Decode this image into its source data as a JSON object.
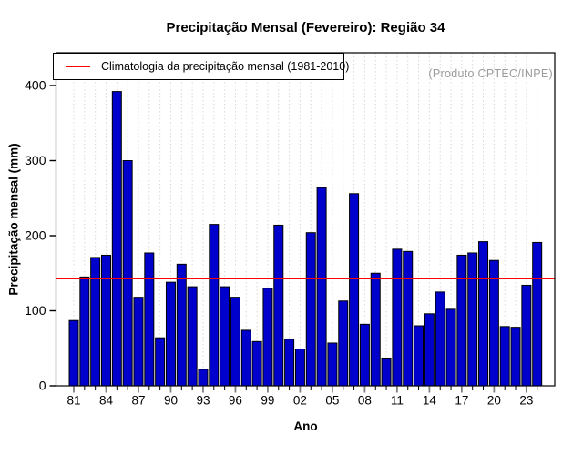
{
  "chart_data": {
    "type": "bar",
    "title": "Precipitação Mensal (Fevereiro): Região 34",
    "xlabel": "Ano",
    "ylabel": "Precipitação mensal (mm)",
    "annotation": "(Produto:CPTEC/INPE)",
    "legend": {
      "label": "Climatologia da precipitação mensal (1981-2010)",
      "position": "top-left"
    },
    "climatology_value": 143,
    "years": [
      1981,
      1982,
      1983,
      1984,
      1985,
      1986,
      1987,
      1988,
      1989,
      1990,
      1991,
      1992,
      1993,
      1994,
      1995,
      1996,
      1997,
      1998,
      1999,
      2000,
      2001,
      2002,
      2003,
      2004,
      2005,
      2006,
      2007,
      2008,
      2009,
      2010,
      2011,
      2012,
      2013,
      2014,
      2015,
      2016,
      2017,
      2018,
      2019,
      2020,
      2021,
      2022,
      2023,
      2024
    ],
    "values": [
      87,
      145,
      171,
      174,
      392,
      300,
      118,
      177,
      64,
      138,
      162,
      132,
      22,
      215,
      132,
      118,
      74,
      59,
      130,
      214,
      62,
      49,
      204,
      264,
      57,
      113,
      256,
      82,
      150,
      37,
      182,
      179,
      80,
      96,
      125,
      102,
      174,
      177,
      192,
      167,
      79,
      78,
      134,
      191
    ],
    "x_tick_years": [
      1981,
      1984,
      1987,
      1990,
      1993,
      1996,
      1999,
      2002,
      2005,
      2008,
      2011,
      2014,
      2017,
      2020,
      2023
    ],
    "x_tick_labels": [
      "81",
      "84",
      "87",
      "90",
      "93",
      "96",
      "99",
      "02",
      "05",
      "08",
      "11",
      "14",
      "17",
      "20",
      "23"
    ],
    "y_ticks": [
      0,
      100,
      200,
      300,
      400
    ],
    "ylim": [
      0,
      443
    ],
    "grid": "vertical-dashed-per-year",
    "colors": {
      "bar_fill": "#0000CC",
      "bar_stroke": "#000000",
      "climatology_line": "#FF0000",
      "grid_line": "#D9D9D9",
      "annotation_text": "#9B9B9B",
      "major_tick": "#808080",
      "minor_tick": "#000000"
    }
  }
}
